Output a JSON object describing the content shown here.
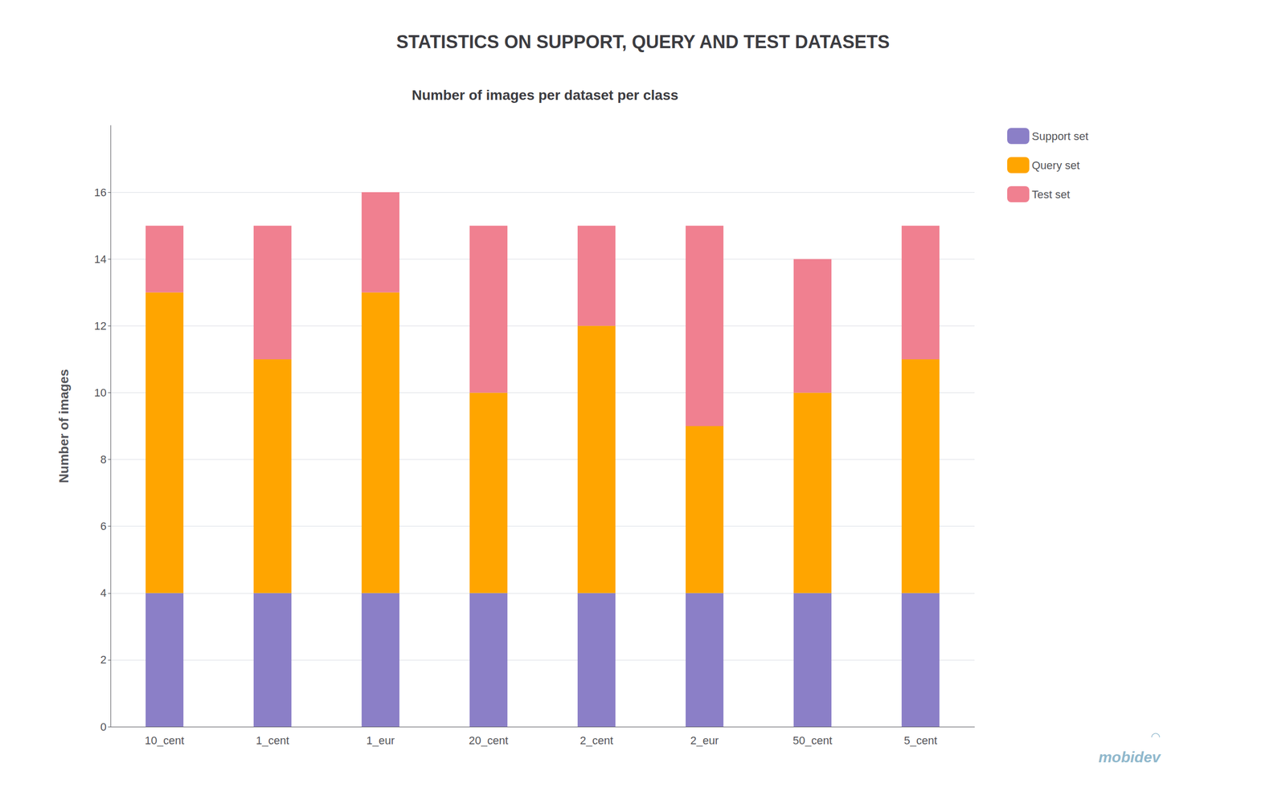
{
  "chart_data": {
    "type": "bar",
    "title": "STATISTICS ON SUPPORT, QUERY AND TEST DATASETS",
    "subtitle": "Number of images per dataset per class",
    "ylabel": "Number of images",
    "categories": [
      "10_cent",
      "1_cent",
      "1_eur",
      "20_cent",
      "2_cent",
      "2_eur",
      "50_cent",
      "5_cent"
    ],
    "series": [
      {
        "name": "Support set",
        "color": "#8B7FC7",
        "values": [
          4,
          4,
          4,
          4,
          4,
          4,
          4,
          4
        ]
      },
      {
        "name": "Query set",
        "color": "#FFA500",
        "values": [
          9,
          7,
          9,
          6,
          8,
          5,
          6,
          7
        ]
      },
      {
        "name": "Test set",
        "color": "#F08090",
        "values": [
          2,
          4,
          3,
          5,
          3,
          6,
          4,
          4
        ]
      }
    ],
    "stacked": true,
    "ylim": [
      0,
      18
    ],
    "yticks": [
      0,
      2,
      4,
      6,
      8,
      10,
      12,
      14,
      16
    ],
    "grid": true,
    "legend": "right",
    "annotations": [
      {
        "text": "mobidev",
        "color": "#90B8CC"
      },
      {
        "text": "◠",
        "color": "#90B8CC"
      }
    ]
  }
}
